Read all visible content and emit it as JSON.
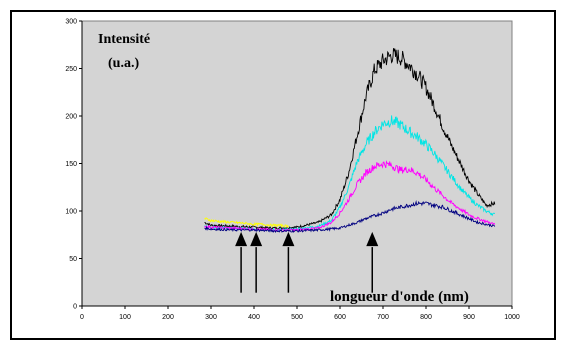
{
  "chart_data": {
    "type": "line",
    "title": "",
    "ylabel_lines": [
      "Intensité",
      "(u.a.)"
    ],
    "xlabel": "longueur d'onde (nm)",
    "xlim": [
      0,
      1000
    ],
    "ylim": [
      0,
      300
    ],
    "xticks": [
      "0",
      "100",
      "200",
      "300",
      "400",
      "500",
      "600",
      "700",
      "800",
      "900",
      "1000"
    ],
    "yticks": [
      "0",
      "50",
      "100",
      "150",
      "200",
      "250",
      "300"
    ],
    "grid": false,
    "background_color": "#d4d4d4",
    "series": [
      {
        "color": "#000000",
        "x": [
          285,
          300,
          350,
          400,
          450,
          500,
          550,
          580,
          600,
          620,
          640,
          660,
          680,
          700,
          720,
          740,
          760,
          780,
          800,
          820,
          840,
          860,
          880,
          900,
          920,
          940,
          960
        ],
        "y": [
          88,
          85,
          84,
          83,
          82,
          83,
          88,
          96,
          112,
          140,
          180,
          220,
          248,
          258,
          264,
          262,
          254,
          244,
          230,
          210,
          188,
          168,
          150,
          132,
          118,
          106,
          108
        ]
      },
      {
        "color": "#00e5e5",
        "x": [
          285,
          300,
          350,
          400,
          450,
          500,
          550,
          580,
          600,
          620,
          640,
          660,
          680,
          700,
          720,
          740,
          760,
          780,
          800,
          820,
          840,
          860,
          880,
          900,
          920,
          940,
          960
        ],
        "y": [
          84,
          83,
          82,
          81,
          80,
          81,
          84,
          90,
          104,
          125,
          152,
          170,
          183,
          192,
          195,
          191,
          184,
          178,
          170,
          160,
          148,
          136,
          124,
          114,
          106,
          100,
          96
        ]
      },
      {
        "color": "#ff00ff",
        "x": [
          285,
          300,
          350,
          400,
          450,
          500,
          550,
          580,
          600,
          620,
          640,
          660,
          680,
          700,
          720,
          740,
          760,
          780,
          800,
          820,
          840,
          860,
          880,
          900,
          920,
          940,
          960
        ],
        "y": [
          84,
          83,
          82,
          81,
          80,
          80,
          82,
          88,
          98,
          112,
          128,
          140,
          147,
          150,
          148,
          143,
          144,
          140,
          133,
          124,
          116,
          108,
          102,
          96,
          92,
          89,
          86
        ]
      },
      {
        "color": "#000080",
        "x": [
          285,
          300,
          350,
          400,
          450,
          500,
          550,
          600,
          620,
          640,
          660,
          680,
          700,
          720,
          740,
          760,
          780,
          800,
          820,
          840,
          860,
          880,
          900,
          920,
          940,
          960
        ],
        "y": [
          82,
          81,
          80,
          80,
          79,
          79,
          80,
          82,
          85,
          88,
          92,
          95,
          98,
          102,
          104,
          106,
          108,
          108,
          106,
          104,
          100,
          96,
          92,
          88,
          86,
          84
        ]
      },
      {
        "color": "#ffff00",
        "x": [
          285,
          300,
          320,
          350,
          380,
          400,
          420,
          440,
          460,
          480
        ],
        "y": [
          92,
          90,
          89,
          88,
          87,
          86,
          86,
          85,
          85,
          84
        ]
      }
    ],
    "arrows_x": [
      370,
      405,
      480,
      675
    ]
  }
}
